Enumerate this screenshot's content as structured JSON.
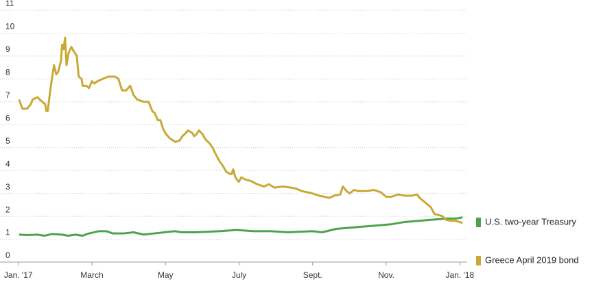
{
  "chart_data": {
    "type": "line",
    "xlim": [
      -0.2,
      12.2
    ],
    "ylim": [
      0,
      11
    ],
    "xticks": [
      {
        "value": 0,
        "label": "Jan. '17"
      },
      {
        "value": 2,
        "label": "March"
      },
      {
        "value": 4,
        "label": "May"
      },
      {
        "value": 6,
        "label": "July"
      },
      {
        "value": 8,
        "label": "Sept."
      },
      {
        "value": 10,
        "label": "Nov."
      },
      {
        "value": 12,
        "label": "Jan. '18"
      }
    ],
    "yticks": [
      0,
      1,
      2,
      3,
      4,
      5,
      6,
      7,
      8,
      9,
      10,
      11
    ],
    "grid": true,
    "series": [
      {
        "name": "U.S. two-year Treasury",
        "color": "#4ea24a",
        "x": [
          0.02,
          0.24,
          0.52,
          0.71,
          0.9,
          1.18,
          1.36,
          1.55,
          1.74,
          1.92,
          2.2,
          2.39,
          2.57,
          2.85,
          3.13,
          3.41,
          3.69,
          3.97,
          4.25,
          4.44,
          4.81,
          5.09,
          5.47,
          5.93,
          6.4,
          6.87,
          7.33,
          7.99,
          8.26,
          8.64,
          9.01,
          9.38,
          9.76,
          10.13,
          10.5,
          10.88,
          11.25,
          11.62,
          11.9,
          12.07
        ],
        "values": [
          1.2,
          1.18,
          1.2,
          1.15,
          1.22,
          1.2,
          1.15,
          1.2,
          1.15,
          1.25,
          1.35,
          1.35,
          1.25,
          1.25,
          1.3,
          1.2,
          1.25,
          1.3,
          1.35,
          1.3,
          1.3,
          1.32,
          1.35,
          1.4,
          1.35,
          1.35,
          1.3,
          1.35,
          1.3,
          1.45,
          1.5,
          1.55,
          1.6,
          1.65,
          1.75,
          1.8,
          1.85,
          1.9,
          1.9,
          1.95
        ]
      },
      {
        "name": "Greece April 2019 bond",
        "color": "#c9a935",
        "x": [
          0.02,
          0.11,
          0.24,
          0.34,
          0.39,
          0.52,
          0.65,
          0.73,
          0.76,
          0.8,
          0.86,
          0.93,
          0.97,
          1.03,
          1.08,
          1.16,
          1.19,
          1.23,
          1.27,
          1.31,
          1.36,
          1.44,
          1.51,
          1.59,
          1.64,
          1.72,
          1.75,
          1.85,
          1.92,
          2.0,
          2.07,
          2.15,
          2.29,
          2.44,
          2.63,
          2.72,
          2.82,
          2.93,
          3.04,
          3.13,
          3.23,
          3.41,
          3.54,
          3.64,
          3.71,
          3.79,
          3.86,
          3.94,
          4.01,
          4.12,
          4.27,
          4.38,
          4.46,
          4.53,
          4.61,
          4.72,
          4.78,
          4.85,
          4.91,
          5.0,
          5.09,
          5.19,
          5.28,
          5.37,
          5.47,
          5.56,
          5.65,
          5.75,
          5.8,
          5.84,
          5.9,
          5.99,
          6.06,
          6.18,
          6.31,
          6.49,
          6.68,
          6.81,
          6.96,
          7.18,
          7.43,
          7.56,
          7.71,
          7.99,
          8.17,
          8.32,
          8.45,
          8.58,
          8.75,
          8.82,
          8.92,
          9.01,
          9.12,
          9.25,
          9.48,
          9.66,
          9.85,
          10.0,
          10.13,
          10.32,
          10.5,
          10.69,
          10.84,
          10.91,
          11.06,
          11.21,
          11.31,
          11.44,
          11.53,
          11.62,
          11.75,
          11.88,
          12.0,
          12.07
        ],
        "values": [
          7.1,
          6.7,
          6.7,
          6.9,
          7.1,
          7.2,
          7.0,
          6.9,
          6.6,
          6.6,
          7.4,
          8.2,
          8.6,
          8.2,
          8.3,
          8.8,
          9.5,
          9.3,
          9.8,
          8.6,
          9.1,
          9.4,
          9.2,
          9.0,
          8.1,
          8.0,
          7.7,
          7.7,
          7.6,
          7.9,
          7.8,
          7.9,
          8.0,
          8.1,
          8.1,
          8.0,
          7.5,
          7.5,
          7.7,
          7.3,
          7.1,
          7.0,
          7.0,
          6.6,
          6.5,
          6.2,
          6.2,
          5.8,
          5.6,
          5.4,
          5.25,
          5.3,
          5.5,
          5.6,
          5.75,
          5.65,
          5.5,
          5.6,
          5.75,
          5.6,
          5.35,
          5.2,
          5.0,
          4.7,
          4.4,
          4.2,
          3.95,
          3.85,
          3.85,
          4.05,
          3.7,
          3.5,
          3.7,
          3.6,
          3.55,
          3.4,
          3.3,
          3.4,
          3.25,
          3.3,
          3.25,
          3.2,
          3.1,
          3.0,
          2.9,
          2.85,
          2.8,
          2.9,
          2.95,
          3.3,
          3.1,
          3.0,
          3.15,
          3.1,
          3.1,
          3.15,
          3.05,
          2.85,
          2.85,
          2.95,
          2.9,
          2.9,
          2.95,
          2.8,
          2.6,
          2.4,
          2.1,
          2.05,
          2.0,
          1.85,
          1.8,
          1.8,
          1.75,
          1.7
        ]
      }
    ]
  }
}
